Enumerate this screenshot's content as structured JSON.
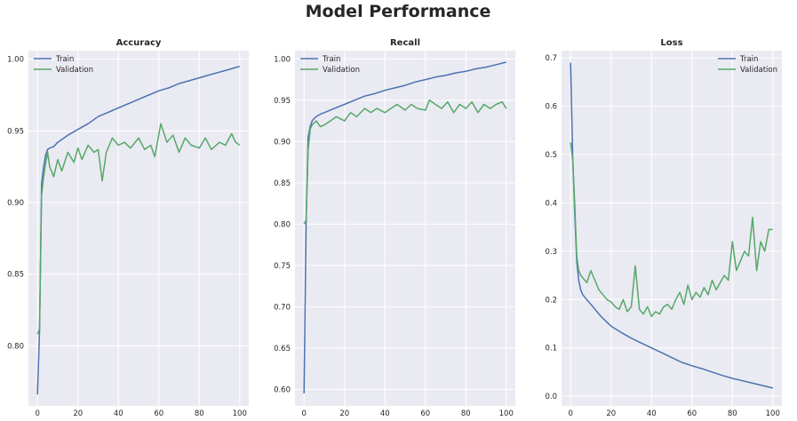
{
  "figure_title": "Model Performance",
  "colors": {
    "train": "#4c72b0",
    "validation": "#55a868",
    "background": "#eaeaf2",
    "grid": "#ffffff"
  },
  "chart_data": [
    {
      "type": "line",
      "title": "Accuracy",
      "xlabel": "",
      "ylabel": "",
      "xlim": [
        -4.5,
        104.5
      ],
      "ylim": [
        0.758,
        1.006
      ],
      "xticks": [
        0,
        20,
        40,
        60,
        80,
        100
      ],
      "yticks": [
        0.8,
        0.85,
        0.9,
        0.95,
        1.0
      ],
      "ytick_labels": [
        "0.80",
        "0.85",
        "0.90",
        "0.95",
        "1.00"
      ],
      "grid": true,
      "legend": "upper left",
      "series": [
        {
          "name": "Train",
          "color": "#4c72b0",
          "x": [
            0,
            1,
            2,
            3,
            4,
            5,
            6,
            8,
            10,
            15,
            20,
            25,
            30,
            35,
            40,
            45,
            50,
            55,
            60,
            65,
            70,
            75,
            80,
            85,
            90,
            95,
            100
          ],
          "values": [
            0.766,
            0.81,
            0.913,
            0.925,
            0.933,
            0.937,
            0.938,
            0.939,
            0.942,
            0.947,
            0.951,
            0.955,
            0.96,
            0.963,
            0.966,
            0.969,
            0.972,
            0.975,
            0.978,
            0.98,
            0.983,
            0.985,
            0.987,
            0.989,
            0.991,
            0.993,
            0.995
          ]
        },
        {
          "name": "Validation",
          "color": "#55a868",
          "x": [
            0,
            1,
            2,
            3,
            4,
            5,
            6,
            8,
            10,
            12,
            15,
            18,
            20,
            22,
            25,
            28,
            30,
            32,
            34,
            37,
            40,
            43,
            46,
            50,
            53,
            56,
            58,
            61,
            64,
            67,
            70,
            73,
            76,
            80,
            83,
            86,
            90,
            93,
            96,
            98,
            100
          ],
          "values": [
            0.808,
            0.812,
            0.905,
            0.918,
            0.927,
            0.935,
            0.925,
            0.918,
            0.93,
            0.922,
            0.935,
            0.928,
            0.938,
            0.93,
            0.94,
            0.935,
            0.937,
            0.915,
            0.935,
            0.945,
            0.94,
            0.942,
            0.938,
            0.945,
            0.937,
            0.94,
            0.932,
            0.955,
            0.942,
            0.947,
            0.935,
            0.945,
            0.94,
            0.938,
            0.945,
            0.937,
            0.942,
            0.94,
            0.948,
            0.942,
            0.94
          ]
        }
      ]
    },
    {
      "type": "line",
      "title": "Recall",
      "xlabel": "",
      "ylabel": "",
      "xlim": [
        -4.5,
        104.5
      ],
      "ylim": [
        0.58,
        1.01
      ],
      "xticks": [
        0,
        20,
        40,
        60,
        80,
        100
      ],
      "yticks": [
        0.6,
        0.65,
        0.7,
        0.75,
        0.8,
        0.85,
        0.9,
        0.95,
        1.0
      ],
      "ytick_labels": [
        "0.60",
        "0.65",
        "0.70",
        "0.75",
        "0.80",
        "0.85",
        "0.90",
        "0.95",
        "1.00"
      ],
      "grid": true,
      "legend": "upper left",
      "series": [
        {
          "name": "Train",
          "color": "#4c72b0",
          "x": [
            0,
            1,
            2,
            3,
            4,
            5,
            6,
            8,
            10,
            15,
            20,
            25,
            30,
            35,
            40,
            45,
            50,
            55,
            60,
            65,
            70,
            75,
            80,
            85,
            90,
            95,
            100
          ],
          "values": [
            0.595,
            0.8,
            0.905,
            0.918,
            0.925,
            0.928,
            0.93,
            0.933,
            0.935,
            0.94,
            0.945,
            0.95,
            0.955,
            0.958,
            0.962,
            0.965,
            0.968,
            0.972,
            0.975,
            0.978,
            0.98,
            0.983,
            0.985,
            0.988,
            0.99,
            0.993,
            0.996
          ]
        },
        {
          "name": "Validation",
          "color": "#55a868",
          "x": [
            0,
            1,
            2,
            3,
            4,
            6,
            8,
            10,
            13,
            16,
            20,
            23,
            26,
            30,
            33,
            36,
            40,
            43,
            46,
            50,
            53,
            56,
            60,
            62,
            65,
            68,
            71,
            74,
            77,
            80,
            83,
            86,
            89,
            92,
            95,
            98,
            100
          ],
          "values": [
            0.8,
            0.805,
            0.89,
            0.915,
            0.92,
            0.925,
            0.918,
            0.92,
            0.925,
            0.93,
            0.925,
            0.935,
            0.93,
            0.94,
            0.935,
            0.94,
            0.935,
            0.94,
            0.945,
            0.938,
            0.945,
            0.94,
            0.938,
            0.95,
            0.945,
            0.94,
            0.948,
            0.935,
            0.945,
            0.94,
            0.948,
            0.935,
            0.945,
            0.94,
            0.945,
            0.948,
            0.94
          ]
        }
      ]
    },
    {
      "type": "line",
      "title": "Loss",
      "xlabel": "",
      "ylabel": "",
      "xlim": [
        -4.5,
        104.5
      ],
      "ylim": [
        -0.02,
        0.715
      ],
      "xticks": [
        0,
        20,
        40,
        60,
        80,
        100
      ],
      "yticks": [
        0.0,
        0.1,
        0.2,
        0.3,
        0.4,
        0.5,
        0.6,
        0.7
      ],
      "ytick_labels": [
        "0.0",
        "0.1",
        "0.2",
        "0.3",
        "0.4",
        "0.5",
        "0.6",
        "0.7"
      ],
      "grid": true,
      "legend": "upper right",
      "series": [
        {
          "name": "Train",
          "color": "#4c72b0",
          "x": [
            0,
            1,
            2,
            3,
            4,
            5,
            6,
            8,
            10,
            15,
            20,
            25,
            30,
            35,
            40,
            45,
            50,
            55,
            60,
            65,
            70,
            75,
            80,
            85,
            90,
            95,
            100
          ],
          "values": [
            0.69,
            0.5,
            0.38,
            0.28,
            0.24,
            0.22,
            0.21,
            0.2,
            0.19,
            0.165,
            0.145,
            0.132,
            0.12,
            0.11,
            0.1,
            0.09,
            0.08,
            0.07,
            0.063,
            0.057,
            0.05,
            0.043,
            0.037,
            0.032,
            0.027,
            0.022,
            0.017
          ]
        },
        {
          "name": "Validation",
          "color": "#55a868",
          "x": [
            0,
            1,
            2,
            3,
            4,
            5,
            6,
            8,
            10,
            12,
            14,
            16,
            18,
            20,
            22,
            24,
            26,
            28,
            30,
            32,
            34,
            36,
            38,
            40,
            42,
            44,
            46,
            48,
            50,
            52,
            54,
            56,
            58,
            60,
            62,
            64,
            66,
            68,
            70,
            72,
            74,
            76,
            78,
            80,
            82,
            84,
            86,
            88,
            90,
            92,
            94,
            96,
            98,
            100
          ],
          "values": [
            0.525,
            0.49,
            0.4,
            0.29,
            0.26,
            0.25,
            0.245,
            0.235,
            0.26,
            0.24,
            0.22,
            0.21,
            0.2,
            0.195,
            0.185,
            0.18,
            0.2,
            0.175,
            0.185,
            0.27,
            0.18,
            0.17,
            0.185,
            0.165,
            0.175,
            0.17,
            0.185,
            0.19,
            0.18,
            0.2,
            0.215,
            0.19,
            0.23,
            0.2,
            0.215,
            0.205,
            0.225,
            0.21,
            0.24,
            0.22,
            0.235,
            0.25,
            0.24,
            0.32,
            0.26,
            0.28,
            0.3,
            0.29,
            0.37,
            0.26,
            0.32,
            0.3,
            0.345,
            0.345
          ]
        }
      ]
    }
  ]
}
